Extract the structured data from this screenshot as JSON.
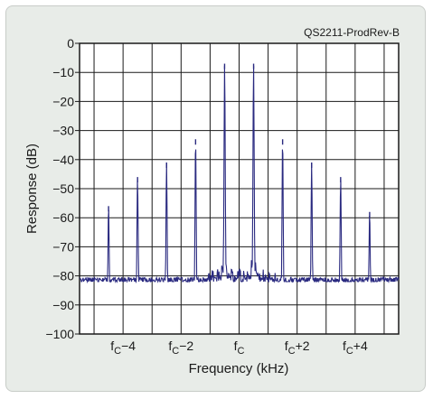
{
  "chart_data": {
    "type": "line",
    "title": "",
    "annotation": "QS2211-ProdRev-B",
    "xlabel": "Frequency (kHz)",
    "ylabel": "Response (dB)",
    "xlim": [
      -5.5,
      5.5
    ],
    "ylim": [
      -100,
      0
    ],
    "grid": true,
    "line_color": "#2a2a80",
    "y_ticks": [
      {
        "value": 0,
        "label": "0"
      },
      {
        "value": -10,
        "label": "−10"
      },
      {
        "value": -20,
        "label": "−20"
      },
      {
        "value": -30,
        "label": "−30"
      },
      {
        "value": -40,
        "label": "−40"
      },
      {
        "value": -50,
        "label": "−50"
      },
      {
        "value": -60,
        "label": "−60"
      },
      {
        "value": -70,
        "label": "−70"
      },
      {
        "value": -80,
        "label": "−80"
      },
      {
        "value": -90,
        "label": "−90"
      },
      {
        "value": -100,
        "label": "−100"
      }
    ],
    "x_ticks": [
      {
        "value": -4,
        "main": "f",
        "sub": "C",
        "suffix": "−4"
      },
      {
        "value": -2,
        "main": "f",
        "sub": "C",
        "suffix": "−2"
      },
      {
        "value": 0,
        "main": "f",
        "sub": "C",
        "suffix": ""
      },
      {
        "value": 2,
        "main": "f",
        "sub": "C",
        "suffix": "+2"
      },
      {
        "value": 4,
        "main": "f",
        "sub": "C",
        "suffix": "+4"
      }
    ],
    "peaks": [
      {
        "x": -4.5,
        "y": -56
      },
      {
        "x": -3.5,
        "y": -46
      },
      {
        "x": -2.5,
        "y": -41
      },
      {
        "x": -1.5,
        "y": -33
      },
      {
        "x": -0.5,
        "y": -7
      },
      {
        "x": 0.5,
        "y": -7
      },
      {
        "x": 1.5,
        "y": -33
      },
      {
        "x": 2.5,
        "y": -41
      },
      {
        "x": 3.5,
        "y": -46
      },
      {
        "x": 4.5,
        "y": -58
      }
    ],
    "noise_floor_db": -90,
    "center_noise_floor_db": -81
  }
}
